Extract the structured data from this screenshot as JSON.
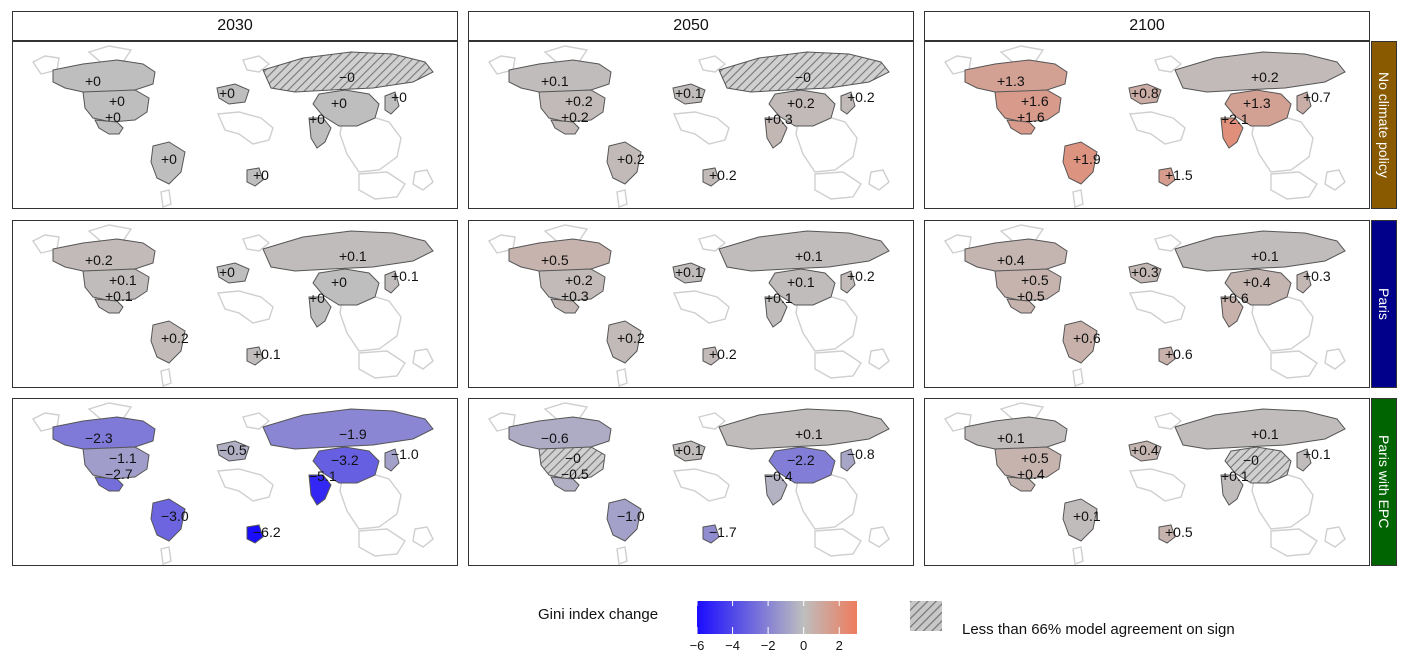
{
  "columns": [
    "2030",
    "2050",
    "2100"
  ],
  "rows": [
    {
      "label": "No climate policy",
      "color": "#8a5a00"
    },
    {
      "label": "Paris",
      "color": "#00008a"
    },
    {
      "label": "Paris with EPC",
      "color": "#006400"
    }
  ],
  "regions": [
    "Canada",
    "USA",
    "Mexico",
    "Brazil",
    "Europe",
    "Russia",
    "China",
    "India",
    "Japan",
    "South Africa"
  ],
  "map_values": [
    [
      {
        "Canada": {
          "v": 0,
          "label": "+0"
        },
        "USA": {
          "v": 0,
          "label": "+0"
        },
        "Mexico": {
          "v": 0,
          "label": "+0"
        },
        "Brazil": {
          "v": 0,
          "label": "+0"
        },
        "Europe": {
          "v": 0,
          "label": "+0"
        },
        "Russia": {
          "v": 0,
          "label": "−0",
          "hatched": true
        },
        "China": {
          "v": 0,
          "label": "+0"
        },
        "India": {
          "v": 0,
          "label": "+0"
        },
        "Japan": {
          "v": 0,
          "label": "+0"
        },
        "South Africa": {
          "v": 0,
          "label": "+0"
        }
      },
      {
        "Canada": {
          "v": 0.1,
          "label": "+0.1"
        },
        "USA": {
          "v": 0.2,
          "label": "+0.2"
        },
        "Mexico": {
          "v": 0.2,
          "label": "+0.2"
        },
        "Brazil": {
          "v": 0.2,
          "label": "+0.2"
        },
        "Europe": {
          "v": 0.1,
          "label": "+0.1"
        },
        "Russia": {
          "v": 0,
          "label": "−0",
          "hatched": true
        },
        "China": {
          "v": 0.2,
          "label": "+0.2"
        },
        "India": {
          "v": 0.3,
          "label": "+0.3"
        },
        "Japan": {
          "v": 0.2,
          "label": "+0.2"
        },
        "South Africa": {
          "v": 0.2,
          "label": "+0.2"
        }
      },
      {
        "Canada": {
          "v": 1.3,
          "label": "+1.3"
        },
        "USA": {
          "v": 1.6,
          "label": "+1.6"
        },
        "Mexico": {
          "v": 1.6,
          "label": "+1.6"
        },
        "Brazil": {
          "v": 1.9,
          "label": "+1.9"
        },
        "Europe": {
          "v": 0.8,
          "label": "+0.8"
        },
        "Russia": {
          "v": 0.2,
          "label": "+0.2"
        },
        "China": {
          "v": 1.3,
          "label": "+1.3"
        },
        "India": {
          "v": 2.1,
          "label": "+2.1"
        },
        "Japan": {
          "v": 0.7,
          "label": "+0.7"
        },
        "South Africa": {
          "v": 1.5,
          "label": "+1.5"
        }
      }
    ],
    [
      {
        "Canada": {
          "v": 0.2,
          "label": "+0.2"
        },
        "USA": {
          "v": 0.1,
          "label": "+0.1"
        },
        "Mexico": {
          "v": 0.1,
          "label": "+0.1"
        },
        "Brazil": {
          "v": 0.2,
          "label": "+0.2"
        },
        "Europe": {
          "v": 0,
          "label": "+0"
        },
        "Russia": {
          "v": 0.1,
          "label": "+0.1"
        },
        "China": {
          "v": 0,
          "label": "+0"
        },
        "India": {
          "v": 0,
          "label": "+0"
        },
        "Japan": {
          "v": 0.1,
          "label": "+0.1"
        },
        "South Africa": {
          "v": 0.1,
          "label": "+0.1"
        }
      },
      {
        "Canada": {
          "v": 0.5,
          "label": "+0.5"
        },
        "USA": {
          "v": 0.2,
          "label": "+0.2"
        },
        "Mexico": {
          "v": 0.3,
          "label": "+0.3"
        },
        "Brazil": {
          "v": 0.2,
          "label": "+0.2"
        },
        "Europe": {
          "v": 0.1,
          "label": "+0.1"
        },
        "Russia": {
          "v": 0.1,
          "label": "+0.1"
        },
        "China": {
          "v": 0.1,
          "label": "+0.1"
        },
        "India": {
          "v": 0.1,
          "label": "+0.1"
        },
        "Japan": {
          "v": 0.2,
          "label": "+0.2"
        },
        "South Africa": {
          "v": 0.2,
          "label": "+0.2"
        }
      },
      {
        "Canada": {
          "v": 0.4,
          "label": "+0.4"
        },
        "USA": {
          "v": 0.5,
          "label": "+0.5"
        },
        "Mexico": {
          "v": 0.5,
          "label": "+0.5"
        },
        "Brazil": {
          "v": 0.6,
          "label": "+0.6"
        },
        "Europe": {
          "v": 0.3,
          "label": "+0.3"
        },
        "Russia": {
          "v": 0.1,
          "label": "+0.1"
        },
        "China": {
          "v": 0.4,
          "label": "+0.4"
        },
        "India": {
          "v": 0.6,
          "label": "+0.6"
        },
        "Japan": {
          "v": 0.3,
          "label": "+0.3"
        },
        "South Africa": {
          "v": 0.6,
          "label": "+0.6"
        }
      }
    ],
    [
      {
        "Canada": {
          "v": -2.3,
          "label": "−2.3"
        },
        "USA": {
          "v": -1.1,
          "label": "−1.1"
        },
        "Mexico": {
          "v": -2.7,
          "label": "−2.7"
        },
        "Brazil": {
          "v": -3.0,
          "label": "−3.0"
        },
        "Europe": {
          "v": -0.5,
          "label": "−0.5"
        },
        "Russia": {
          "v": -1.9,
          "label": "−1.9"
        },
        "China": {
          "v": -3.2,
          "label": "−3.2"
        },
        "India": {
          "v": -5.1,
          "label": "−5.1"
        },
        "Japan": {
          "v": -1.0,
          "label": "−1.0"
        },
        "South Africa": {
          "v": -6.2,
          "label": "−6.2"
        }
      },
      {
        "Canada": {
          "v": -0.6,
          "label": "−0.6"
        },
        "USA": {
          "v": 0,
          "label": "−0",
          "hatched": true
        },
        "Mexico": {
          "v": -0.5,
          "label": "−0.5"
        },
        "Brazil": {
          "v": -1.0,
          "label": "−1.0"
        },
        "Europe": {
          "v": 0.1,
          "label": "+0.1"
        },
        "Russia": {
          "v": 0.1,
          "label": "+0.1"
        },
        "China": {
          "v": -2.2,
          "label": "−2.2"
        },
        "India": {
          "v": -0.4,
          "label": "−0.4"
        },
        "Japan": {
          "v": -0.8,
          "label": "−0.8"
        },
        "South Africa": {
          "v": -1.7,
          "label": "−1.7"
        }
      },
      {
        "Canada": {
          "v": 0.1,
          "label": "+0.1"
        },
        "USA": {
          "v": 0.5,
          "label": "+0.5"
        },
        "Mexico": {
          "v": 0.4,
          "label": "+0.4"
        },
        "Brazil": {
          "v": 0.1,
          "label": "+0.1"
        },
        "Europe": {
          "v": 0.4,
          "label": "+0.4"
        },
        "Russia": {
          "v": 0.1,
          "label": "+0.1"
        },
        "China": {
          "v": 0,
          "label": "−0",
          "hatched": true
        },
        "India": {
          "v": 0.1,
          "label": "+0.1"
        },
        "Japan": {
          "v": 0.1,
          "label": "+0.1"
        },
        "South Africa": {
          "v": 0.5,
          "label": "+0.5"
        }
      }
    ]
  ],
  "legend": {
    "title": "Gini index change",
    "min": -6,
    "max": 3,
    "ticks": [
      -6,
      -4,
      -2,
      0,
      2
    ],
    "tick_labels": [
      "−6",
      "−4",
      "−2",
      "0",
      "2"
    ],
    "colors": {
      "low": "#1a0cff",
      "mid": "#bebebe",
      "high": "#ee7b5d"
    },
    "hatch_label": "Less than 66% model agreement on sign"
  }
}
